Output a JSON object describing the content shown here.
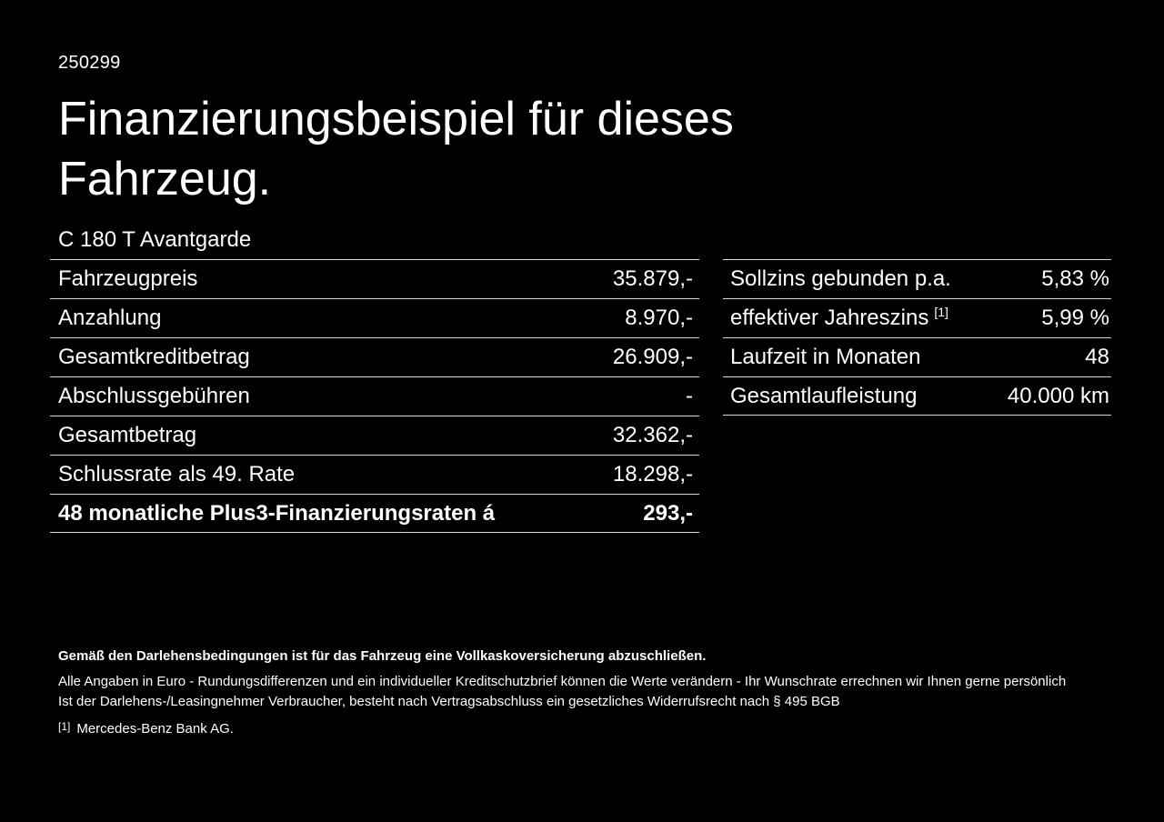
{
  "page": {
    "ref_number": "250299",
    "title": "Finanzierungsbeispiel für dieses Fahrzeug.",
    "model": "C 180 T Avantgarde"
  },
  "finance_table": {
    "rows": [
      {
        "label": "Fahrzeugpreis",
        "value": "35.879,-"
      },
      {
        "label": "Anzahlung",
        "value": "8.970,-"
      },
      {
        "label": "Gesamtkreditbetrag",
        "value": "26.909,-"
      },
      {
        "label": "Abschlussgebühren",
        "value": "-"
      },
      {
        "label": "Gesamtbetrag",
        "value": "32.362,-"
      },
      {
        "label": "Schlussrate als 49. Rate",
        "value": "18.298,-"
      },
      {
        "label": "48 monatliche Plus3-Finanzierungsraten á",
        "value": "293,-"
      }
    ]
  },
  "conditions_table": {
    "rows": [
      {
        "label": "Sollzins gebunden p.a.",
        "value": "5,83 %"
      },
      {
        "label": "effektiver Jahreszins",
        "footnote": "[1]",
        "value": "5,99 %"
      },
      {
        "label": "Laufzeit in Monaten",
        "value": "48"
      },
      {
        "label": "Gesamtlaufleistung",
        "value": "40.000 km"
      }
    ]
  },
  "footer": {
    "insurance_note": "Gemäß den Darlehensbedingungen ist für das Fahrzeug eine Vollkaskoversicherung abzuschließen.",
    "note_line1": "Alle Angaben in Euro - Rundungsdifferenzen und ein individueller Kreditschutzbrief können die Werte verändern - Ihr Wunschrate errechnen wir Ihnen gerne persönlich",
    "note_line2": "Ist der Darlehens-/Leasingnehmer Verbraucher, besteht nach Vertragsabschluss ein gesetzliches Widerrufsrecht nach § 495 BGB",
    "footnote_marker": "[1]",
    "footnote_text": "Mercedes-Benz Bank AG."
  },
  "colors": {
    "background": "#000000",
    "text": "#ffffff",
    "divider": "#d8d8d8"
  }
}
